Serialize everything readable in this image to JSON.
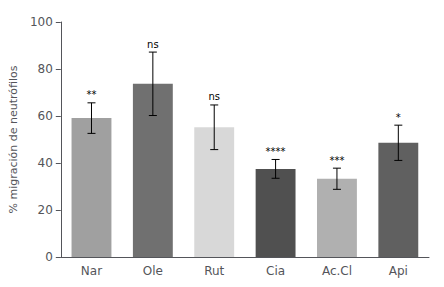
{
  "chart_data": {
    "type": "bar",
    "categories": [
      "Nar",
      "Ole",
      "Rut",
      "Cia",
      "Ac.Cl",
      "Api"
    ],
    "values": [
      59.1,
      73.7,
      55.2,
      37.5,
      33.3,
      48.6
    ],
    "errors": [
      6.5,
      13.5,
      9.5,
      4.0,
      4.5,
      7.5
    ],
    "colors": [
      "#a0a0a0",
      "#707070",
      "#d8d8d8",
      "#505050",
      "#b0b0b0",
      "#606060"
    ],
    "annotations": [
      "**",
      "ns",
      "ns",
      "****",
      "***",
      "*"
    ],
    "ylabel": "% migración de neutrófilos",
    "ylim": [
      0,
      100
    ],
    "yticks": [
      0,
      20,
      40,
      60,
      80,
      100
    ],
    "grid": false
  }
}
